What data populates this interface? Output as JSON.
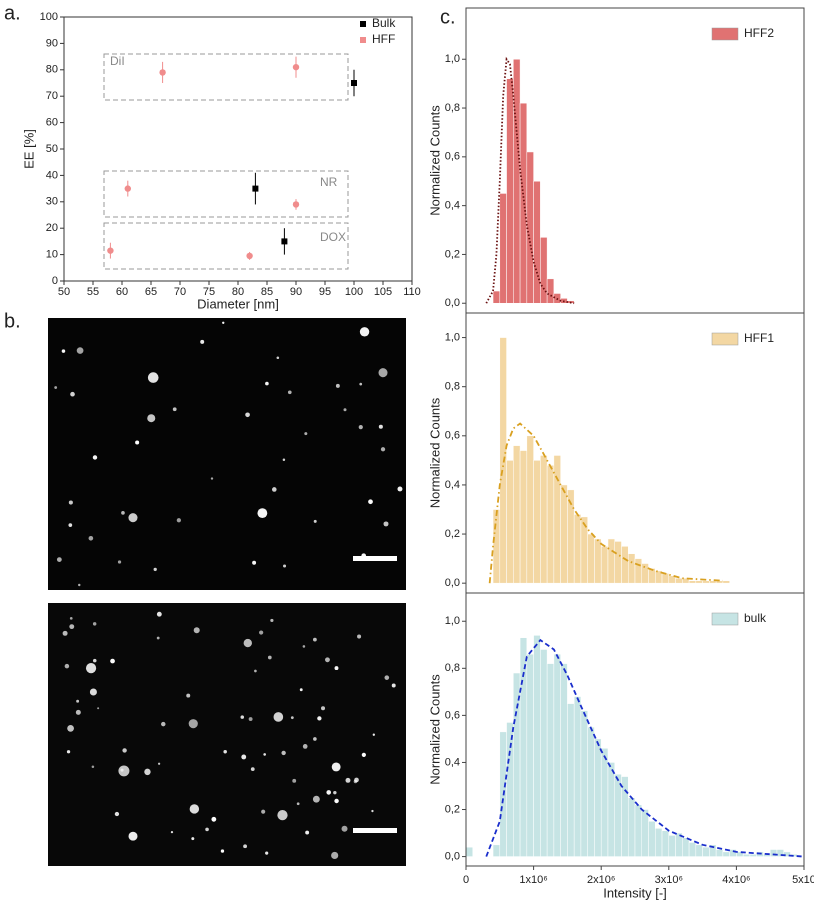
{
  "panel_labels": [
    "a.",
    "b.",
    "c."
  ],
  "chart_data": [
    {
      "type": "scatter",
      "xlabel": "Diameter [nm]",
      "ylabel": "EE [%]",
      "xlim": [
        50,
        110
      ],
      "xticks": [
        50,
        55,
        60,
        65,
        70,
        75,
        80,
        85,
        90,
        95,
        100,
        105,
        110
      ],
      "ylim": [
        0,
        100
      ],
      "yticks": [
        0,
        10,
        20,
        30,
        40,
        50,
        60,
        70,
        80,
        90,
        100
      ],
      "legend": "upper right",
      "annotations": [
        "DiI",
        "NR",
        "DOX"
      ],
      "series": [
        {
          "name": "Bulk",
          "color": "#000000",
          "marker": "square",
          "x": [
            100,
            83,
            88
          ],
          "values": [
            75,
            35,
            15
          ],
          "errors": [
            5,
            6,
            5
          ]
        },
        {
          "name": "HFF",
          "color": "#f08c8c",
          "marker": "circle",
          "x": [
            67,
            90,
            61,
            90,
            58,
            82
          ],
          "values": [
            79,
            81,
            35,
            29,
            11.5,
            9.5
          ],
          "errors": [
            4,
            4,
            3,
            2,
            3,
            1.5
          ]
        }
      ]
    },
    {
      "type": "histogram",
      "ylabel": "Normalized Counts",
      "name": "HFF2",
      "color": "#e07272",
      "xlim": [
        0,
        5000000
      ],
      "ylim": [
        -0.04,
        1.21
      ],
      "yticks": [
        {
          "value": 0,
          "label": "0,0"
        },
        {
          "value": 0.2,
          "label": "0,2"
        },
        {
          "value": 0.4,
          "label": "0,4"
        },
        {
          "value": 0.6,
          "label": "0,6"
        },
        {
          "value": 0.8,
          "label": "0,8"
        },
        {
          "value": 1,
          "label": "1,0"
        }
      ],
      "bins": [
        400000,
        500000,
        600000,
        700000,
        800000,
        900000,
        1000000,
        1100000,
        1200000,
        1300000,
        1400000,
        1500000,
        1600000
      ],
      "counts": [
        0.05,
        0.45,
        0.92,
        1.0,
        0.82,
        0.62,
        0.5,
        0.27,
        0.1,
        0.04,
        0.02,
        0.01
      ],
      "fit": {
        "color": "#6a1010",
        "style": "dotted",
        "x": [
          300000,
          400000,
          450000,
          500000,
          550000,
          600000,
          650000,
          700000,
          800000,
          900000,
          1000000,
          1100000,
          1200000,
          1400000,
          1600000
        ],
        "values": [
          0,
          0.05,
          0.2,
          0.5,
          0.85,
          1.0,
          0.98,
          0.85,
          0.55,
          0.32,
          0.17,
          0.08,
          0.04,
          0.01,
          0
        ]
      }
    },
    {
      "type": "histogram",
      "ylabel": "Normalized Counts",
      "name": "HFF1",
      "color": "#f3d7a3",
      "xlim": [
        0,
        5000000
      ],
      "ylim": [
        -0.04,
        1.1
      ],
      "yticks": [
        {
          "value": 0,
          "label": "0,0"
        },
        {
          "value": 0.2,
          "label": "0,2"
        },
        {
          "value": 0.4,
          "label": "0,4"
        },
        {
          "value": 0.6,
          "label": "0,6"
        },
        {
          "value": 0.8,
          "label": "0,8"
        },
        {
          "value": 1,
          "label": "1,0"
        }
      ],
      "bins": [
        400000,
        500000,
        600000,
        700000,
        800000,
        900000,
        1000000,
        1100000,
        1200000,
        1300000,
        1400000,
        1500000,
        1600000,
        1700000,
        1800000,
        1900000,
        2000000,
        2100000,
        2200000,
        2300000,
        2400000,
        2500000,
        2600000,
        2700000,
        2800000,
        2900000,
        3000000,
        3100000,
        3200000,
        3300000,
        3400000,
        3500000,
        3600000,
        3700000,
        3800000,
        3900000
      ],
      "counts": [
        0.3,
        1.0,
        0.5,
        0.56,
        0.54,
        0.6,
        0.5,
        0.52,
        0.48,
        0.52,
        0.4,
        0.38,
        0.28,
        0.27,
        0.2,
        0.18,
        0.15,
        0.18,
        0.17,
        0.15,
        0.12,
        0.1,
        0.08,
        0.06,
        0.05,
        0.04,
        0.03,
        0.02,
        0.02,
        0.01,
        0.01,
        0.01,
        0.01,
        0.01,
        0.01
      ],
      "fit": {
        "color": "#d9a020",
        "style": "dashdot",
        "x": [
          350000,
          400000,
          500000,
          600000,
          700000,
          800000,
          1000000,
          1200000,
          1400000,
          1600000,
          1800000,
          2000000,
          2400000,
          2800000,
          3200000,
          3800000
        ],
        "values": [
          0,
          0.15,
          0.4,
          0.56,
          0.63,
          0.65,
          0.6,
          0.5,
          0.4,
          0.3,
          0.22,
          0.16,
          0.09,
          0.05,
          0.02,
          0.01
        ]
      }
    },
    {
      "type": "histogram",
      "ylabel": "Normalized Counts",
      "xlabel": "Intensity [-]",
      "name": "bulk",
      "color": "#c6e4e4",
      "xlim": [
        0,
        5000000
      ],
      "ylim": [
        -0.04,
        1.12
      ],
      "xticks": [
        0,
        {
          "value": 1000000,
          "label": "1x10⁶"
        },
        {
          "value": 2000000,
          "label": "2x10⁶"
        },
        {
          "value": 3000000,
          "label": "3x10⁶"
        },
        {
          "value": 4000000,
          "label": "4x10⁶"
        },
        {
          "value": 5000000,
          "label": "5x10"
        }
      ],
      "yticks": [
        {
          "value": 0,
          "label": "0,0"
        },
        {
          "value": 0.2,
          "label": "0,2"
        },
        {
          "value": 0.4,
          "label": "0,4"
        },
        {
          "value": 0.6,
          "label": "0,6"
        },
        {
          "value": 0.8,
          "label": "0,8"
        },
        {
          "value": 1,
          "label": "1,0"
        }
      ],
      "bins": [
        0,
        100000,
        200000,
        300000,
        400000,
        500000,
        600000,
        700000,
        800000,
        900000,
        1000000,
        1100000,
        1200000,
        1300000,
        1400000,
        1500000,
        1600000,
        1700000,
        1800000,
        1900000,
        2000000,
        2100000,
        2200000,
        2300000,
        2400000,
        2500000,
        2600000,
        2700000,
        2800000,
        2900000,
        3000000,
        3100000,
        3200000,
        3300000,
        3400000,
        3500000,
        3600000,
        3700000,
        3800000,
        3900000,
        4000000,
        4100000,
        4200000,
        4300000,
        4400000,
        4500000,
        4600000,
        4700000,
        4800000,
        4900000
      ],
      "counts": [
        0.04,
        0,
        0,
        0,
        0.05,
        0.53,
        0.57,
        0.78,
        0.93,
        0.86,
        0.94,
        0.88,
        0.82,
        0.86,
        0.82,
        0.65,
        0.68,
        0.62,
        0.55,
        0.5,
        0.46,
        0.4,
        0.35,
        0.34,
        0.25,
        0.22,
        0.2,
        0.15,
        0.12,
        0.11,
        0.09,
        0.1,
        0.08,
        0.06,
        0.05,
        0.04,
        0.05,
        0.03,
        0.02,
        0.03,
        0.02,
        0.01,
        0.01,
        0.02,
        0.01,
        0.03,
        0.03,
        0.02,
        0.01
      ],
      "fit": {
        "color": "#1a2ecc",
        "style": "dashed",
        "x": [
          300000,
          500000,
          700000,
          900000,
          1100000,
          1300000,
          1500000,
          1700000,
          2000000,
          2300000,
          2600000,
          3000000,
          3500000,
          4000000,
          4500000,
          5000000
        ],
        "values": [
          0,
          0.15,
          0.55,
          0.85,
          0.92,
          0.88,
          0.77,
          0.64,
          0.45,
          0.3,
          0.2,
          0.11,
          0.05,
          0.02,
          0.01,
          0
        ]
      }
    }
  ]
}
